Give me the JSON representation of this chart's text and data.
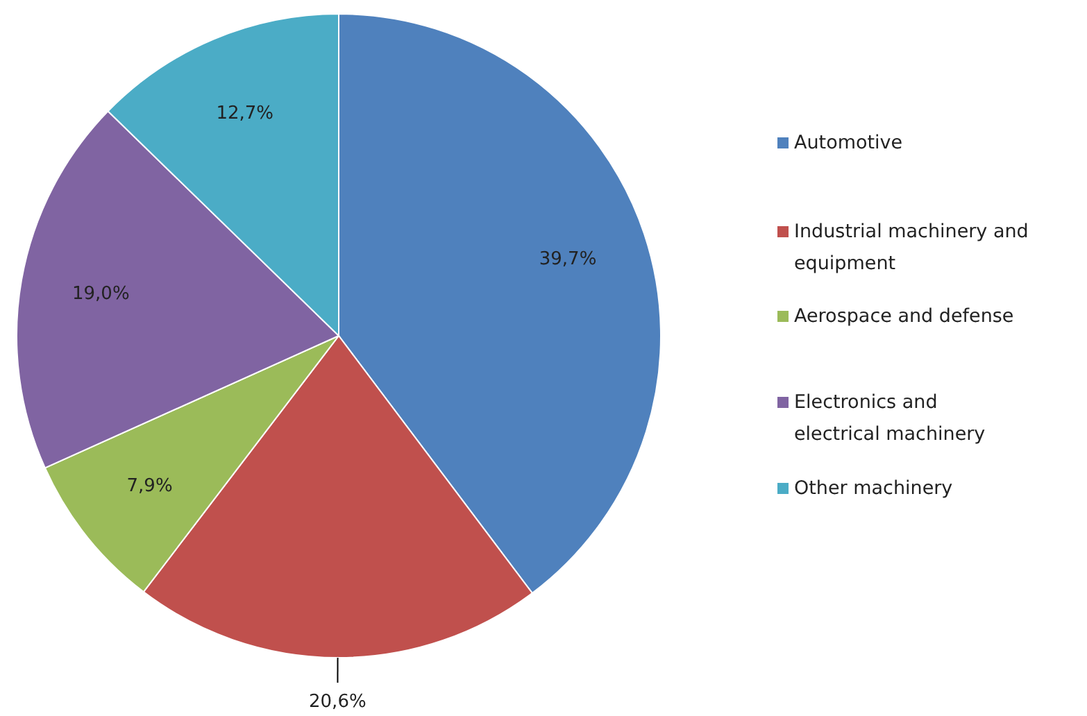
{
  "chart_data": {
    "type": "pie",
    "categories": [
      "Automotive",
      "Industrial machinery and equipment",
      "Aerospace and defense",
      "Electronics and electrical machinery",
      "Other machinery"
    ],
    "values": [
      39.7,
      20.6,
      7.9,
      19.0,
      12.7
    ],
    "colors": [
      "#4f81bd",
      "#c0504d",
      "#9bbb59",
      "#8064a2",
      "#4bacc6"
    ],
    "value_labels": [
      "39,7%",
      "20,6%",
      "7,9%",
      "19,0%",
      "12,7%"
    ],
    "legend": "right"
  }
}
